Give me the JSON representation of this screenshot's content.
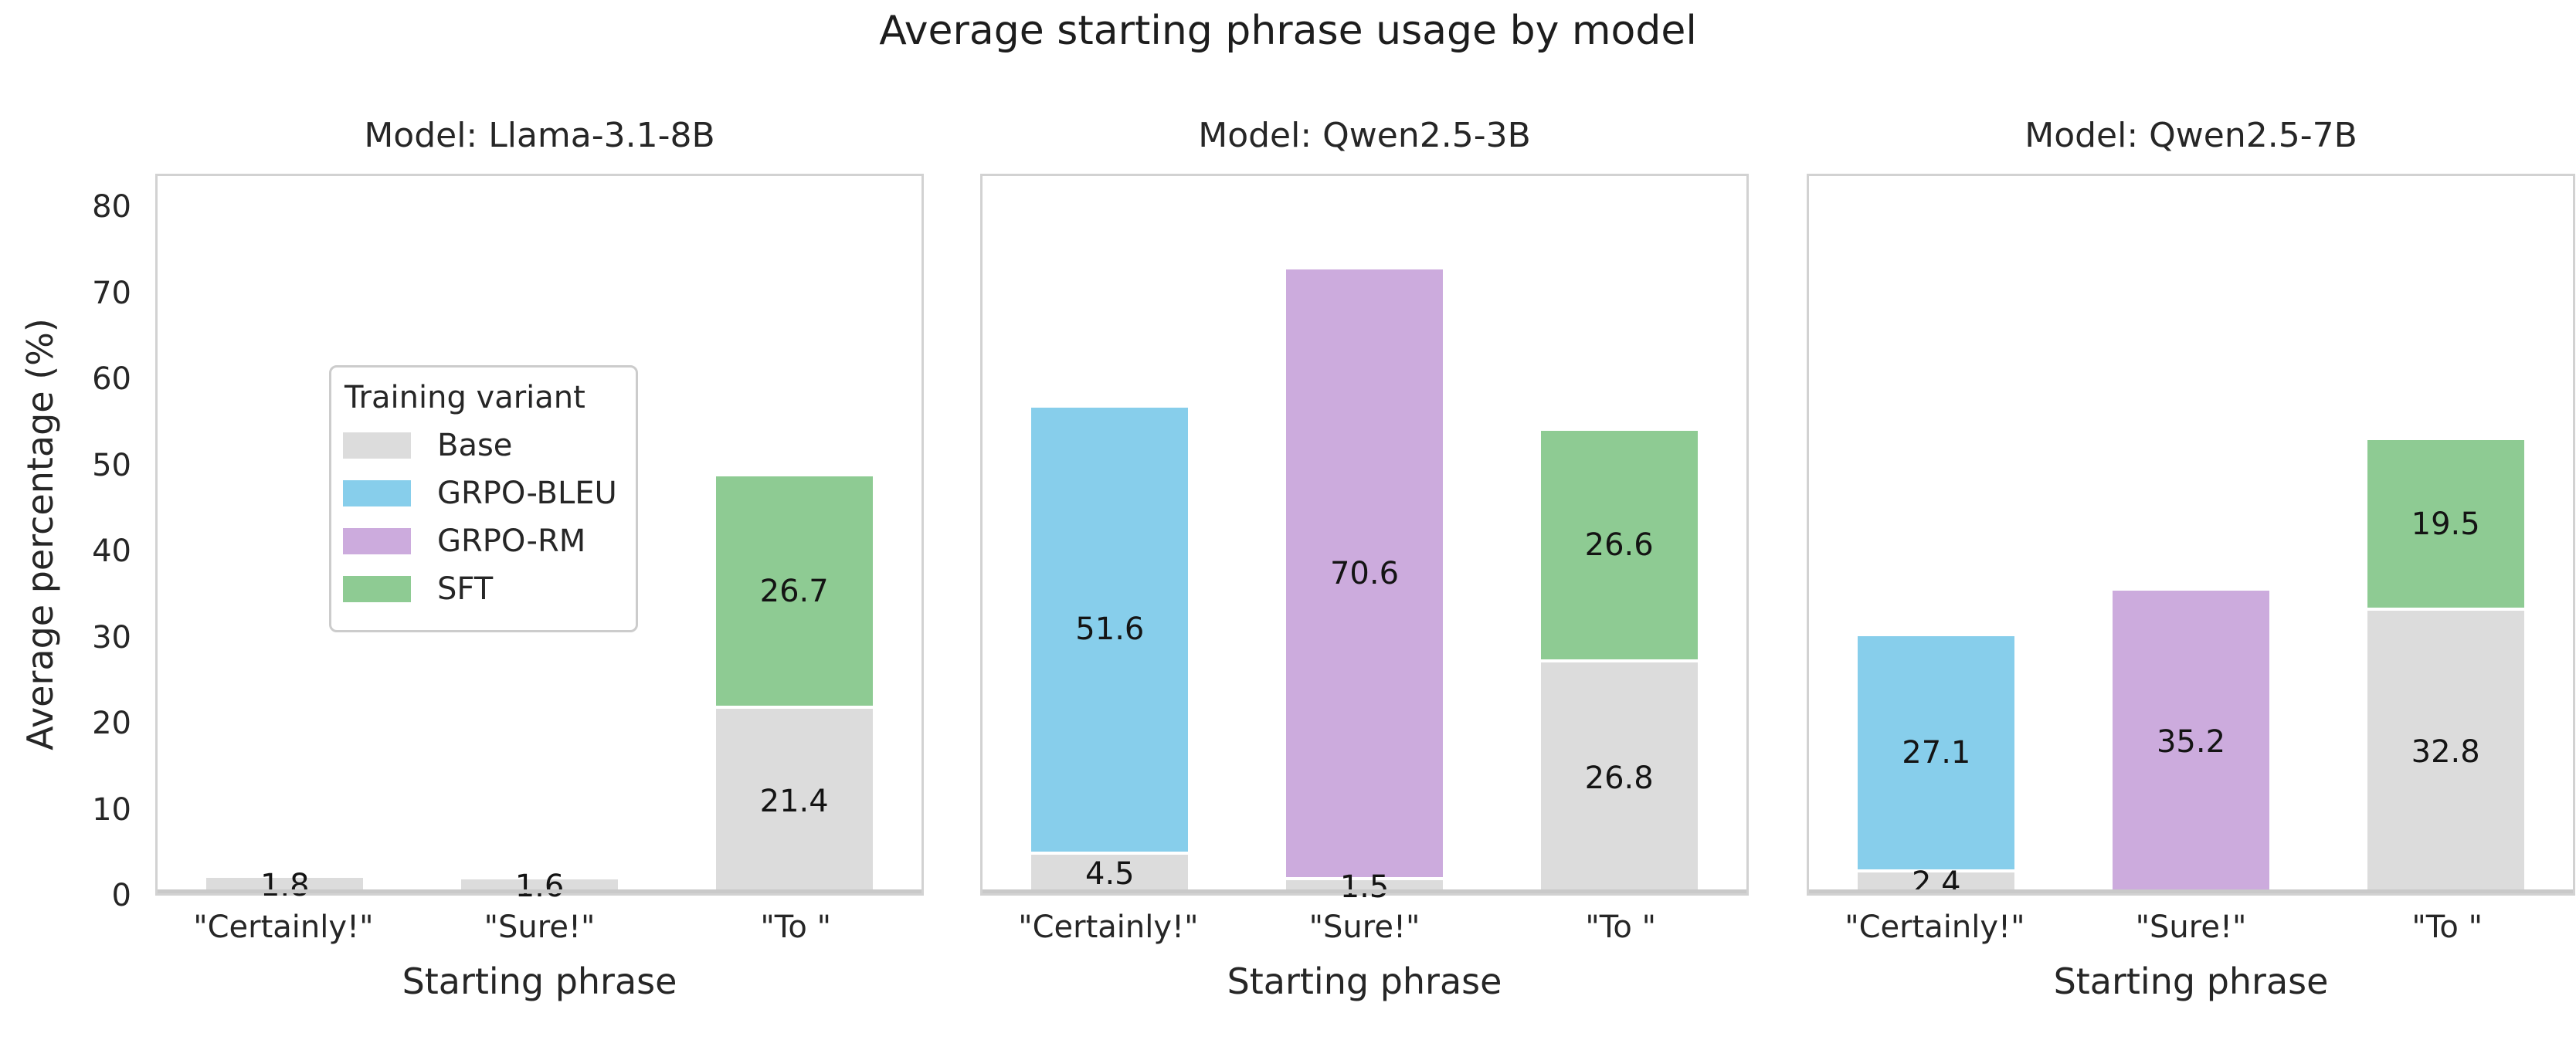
{
  "figure": {
    "title": "Average starting phrase usage by model",
    "xlabel": "Starting phrase",
    "ylabel": "Average percentage (%)",
    "y_ticks": [
      0,
      10,
      20,
      30,
      40,
      50,
      60,
      70,
      80
    ],
    "legend": {
      "title": "Training variant",
      "position": "upper left of first subplot",
      "entries": [
        {
          "label": "Base",
          "color": "#dcdcdc"
        },
        {
          "label": "GRPO-BLEU",
          "color": "#87ceeb"
        },
        {
          "label": "GRPO-RM",
          "color": "#ccabdd"
        },
        {
          "label": "SFT",
          "color": "#8ecb93"
        }
      ]
    }
  },
  "chart_data": [
    {
      "type": "bar",
      "stacked": true,
      "title": "Model: Llama-3.1-8B",
      "categories": [
        "\"Certainly!\"",
        "\"Sure!\"",
        "\"To \""
      ],
      "xlabel": "Starting phrase",
      "ylabel": "Average percentage (%)",
      "ylim": [
        0,
        80
      ],
      "grid": false,
      "bars": [
        {
          "category": "\"Certainly!\"",
          "segments": [
            {
              "variant": "Base",
              "value": 1.8,
              "label": "1.8"
            }
          ]
        },
        {
          "category": "\"Sure!\"",
          "segments": [
            {
              "variant": "Base",
              "value": 1.6,
              "label": "1.6"
            }
          ]
        },
        {
          "category": "\"To \"",
          "segments": [
            {
              "variant": "Base",
              "value": 21.4,
              "label": "21.4"
            },
            {
              "variant": "SFT",
              "value": 26.7,
              "label": "26.7"
            }
          ]
        }
      ]
    },
    {
      "type": "bar",
      "stacked": true,
      "title": "Model: Qwen2.5-3B",
      "categories": [
        "\"Certainly!\"",
        "\"Sure!\"",
        "\"To \""
      ],
      "xlabel": "Starting phrase",
      "ylim": [
        0,
        80
      ],
      "grid": false,
      "bars": [
        {
          "category": "\"Certainly!\"",
          "segments": [
            {
              "variant": "Base",
              "value": 4.5,
              "label": "4.5"
            },
            {
              "variant": "GRPO-BLEU",
              "value": 51.6,
              "label": "51.6"
            }
          ]
        },
        {
          "category": "\"Sure!\"",
          "segments": [
            {
              "variant": "Base",
              "value": 1.5,
              "label": "1.5"
            },
            {
              "variant": "GRPO-RM",
              "value": 70.6,
              "label": "70.6"
            }
          ]
        },
        {
          "category": "\"To \"",
          "segments": [
            {
              "variant": "Base",
              "value": 26.8,
              "label": "26.8"
            },
            {
              "variant": "SFT",
              "value": 26.6,
              "label": "26.6"
            }
          ]
        }
      ]
    },
    {
      "type": "bar",
      "stacked": true,
      "title": "Model: Qwen2.5-7B",
      "categories": [
        "\"Certainly!\"",
        "\"Sure!\"",
        "\"To \""
      ],
      "xlabel": "Starting phrase",
      "ylim": [
        0,
        80
      ],
      "grid": false,
      "bars": [
        {
          "category": "\"Certainly!\"",
          "segments": [
            {
              "variant": "Base",
              "value": 2.4,
              "label": "2.4"
            },
            {
              "variant": "GRPO-BLEU",
              "value": 27.1,
              "label": "27.1"
            }
          ]
        },
        {
          "category": "\"Sure!\"",
          "segments": [
            {
              "variant": "GRPO-RM",
              "value": 35.2,
              "label": "35.2"
            }
          ]
        },
        {
          "category": "\"To \"",
          "segments": [
            {
              "variant": "Base",
              "value": 32.8,
              "label": "32.8"
            },
            {
              "variant": "SFT",
              "value": 19.5,
              "label": "19.5"
            }
          ]
        }
      ]
    }
  ]
}
